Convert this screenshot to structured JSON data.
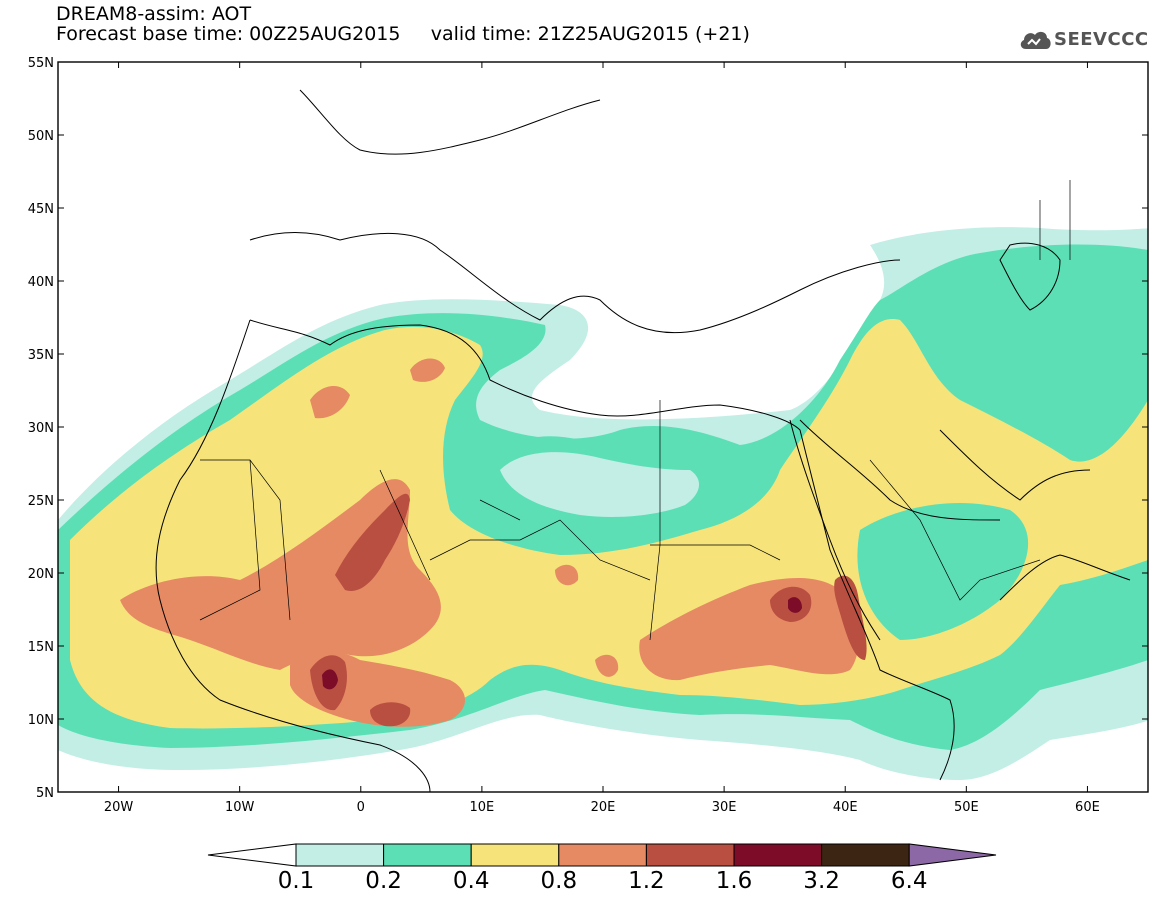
{
  "header": {
    "title_line_1": "DREAM8-assim: AOT",
    "base_time_label": "Forecast base time: 00Z25AUG2015",
    "valid_time_label": "valid time: 21Z25AUG2015 (+21)",
    "logo_text": "SEEVCCC"
  },
  "map": {
    "lon_labels": [
      "20W",
      "10W",
      "0",
      "10E",
      "20E",
      "30E",
      "40E",
      "50E",
      "60E"
    ],
    "lat_labels": [
      "55N",
      "50N",
      "45N",
      "40N",
      "35N",
      "30N",
      "25N",
      "20N",
      "15N",
      "10N",
      "5N"
    ],
    "lon_range": [
      -25,
      65
    ],
    "lat_range": [
      5,
      55
    ],
    "field": "AOT (aerosol optical thickness)"
  },
  "colorbar": {
    "thresholds": [
      "0.1",
      "0.2",
      "0.4",
      "0.8",
      "1.2",
      "1.6",
      "3.2",
      "6.4"
    ],
    "colors": [
      "#ffffff",
      "#c2eee6",
      "#5cdfb5",
      "#f6e47a",
      "#e68a64",
      "#b84f40",
      "#7c0c28",
      "#3d2513",
      "#8d68a6"
    ]
  },
  "colors": {
    "c1": "#c2eee6",
    "c2": "#5cdfb5",
    "c3": "#f6e47a",
    "c4": "#e68a64",
    "c5": "#b84f40",
    "c6": "#7c0c28"
  }
}
